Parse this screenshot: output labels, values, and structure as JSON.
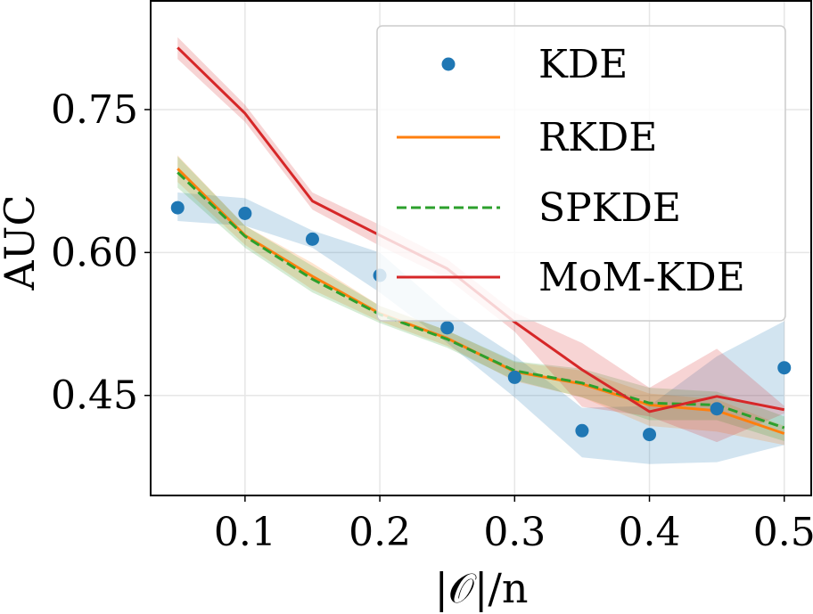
{
  "chart_data": {
    "type": "line",
    "xlabel": "|𝒪|/n",
    "ylabel": "AUC",
    "x": [
      0.05,
      0.1,
      0.15,
      0.2,
      0.25,
      0.3,
      0.35,
      0.4,
      0.45,
      0.5
    ],
    "xlim": [
      0.03,
      0.52
    ],
    "ylim": [
      0.345,
      0.865
    ],
    "xticks": [
      0.1,
      0.2,
      0.3,
      0.4,
      0.5
    ],
    "xtick_labels": [
      "0.1",
      "0.2",
      "0.3",
      "0.4",
      "0.5"
    ],
    "yticks": [
      0.45,
      0.6,
      0.75
    ],
    "ytick_labels": [
      "0.45",
      "0.60",
      "0.75"
    ],
    "grid": true,
    "legend_position": "top-right",
    "series": [
      {
        "name": "KDE",
        "style": "scatter",
        "color": "#1f77b4",
        "values": [
          0.647,
          0.641,
          0.614,
          0.576,
          0.521,
          0.469,
          0.413,
          0.409,
          0.436,
          0.479
        ],
        "band_low": [
          0.633,
          0.628,
          0.605,
          0.558,
          0.505,
          0.448,
          0.385,
          0.378,
          0.38,
          0.398
        ],
        "band_high": [
          0.663,
          0.657,
          0.623,
          0.6,
          0.538,
          0.492,
          0.437,
          0.439,
          0.491,
          0.528
        ]
      },
      {
        "name": "RKDE",
        "style": "solid",
        "color": "#ff7f0e",
        "values": [
          0.688,
          0.618,
          0.575,
          0.536,
          0.51,
          0.475,
          0.462,
          0.44,
          0.434,
          0.41
        ],
        "band_low": [
          0.674,
          0.608,
          0.561,
          0.528,
          0.502,
          0.465,
          0.448,
          0.418,
          0.412,
          0.398
        ],
        "band_high": [
          0.702,
          0.628,
          0.589,
          0.544,
          0.518,
          0.485,
          0.476,
          0.452,
          0.446,
          0.418
        ]
      },
      {
        "name": "SPKDE",
        "style": "dashed",
        "color": "#2ca02c",
        "values": [
          0.684,
          0.617,
          0.572,
          0.535,
          0.509,
          0.476,
          0.463,
          0.442,
          0.44,
          0.416
        ],
        "band_low": [
          0.668,
          0.605,
          0.558,
          0.526,
          0.5,
          0.466,
          0.448,
          0.424,
          0.424,
          0.402
        ],
        "band_high": [
          0.701,
          0.628,
          0.586,
          0.544,
          0.518,
          0.486,
          0.478,
          0.458,
          0.454,
          0.428
        ]
      },
      {
        "name": "MoM-KDE",
        "style": "solid",
        "color": "#d62728",
        "values": [
          0.815,
          0.746,
          0.654,
          0.618,
          0.583,
          0.527,
          0.477,
          0.433,
          0.449,
          0.435
        ],
        "band_low": [
          0.803,
          0.737,
          0.645,
          0.607,
          0.573,
          0.517,
          0.438,
          0.428,
          0.401,
          0.431
        ],
        "band_high": [
          0.826,
          0.755,
          0.663,
          0.629,
          0.593,
          0.537,
          0.505,
          0.458,
          0.499,
          0.439
        ]
      }
    ]
  }
}
